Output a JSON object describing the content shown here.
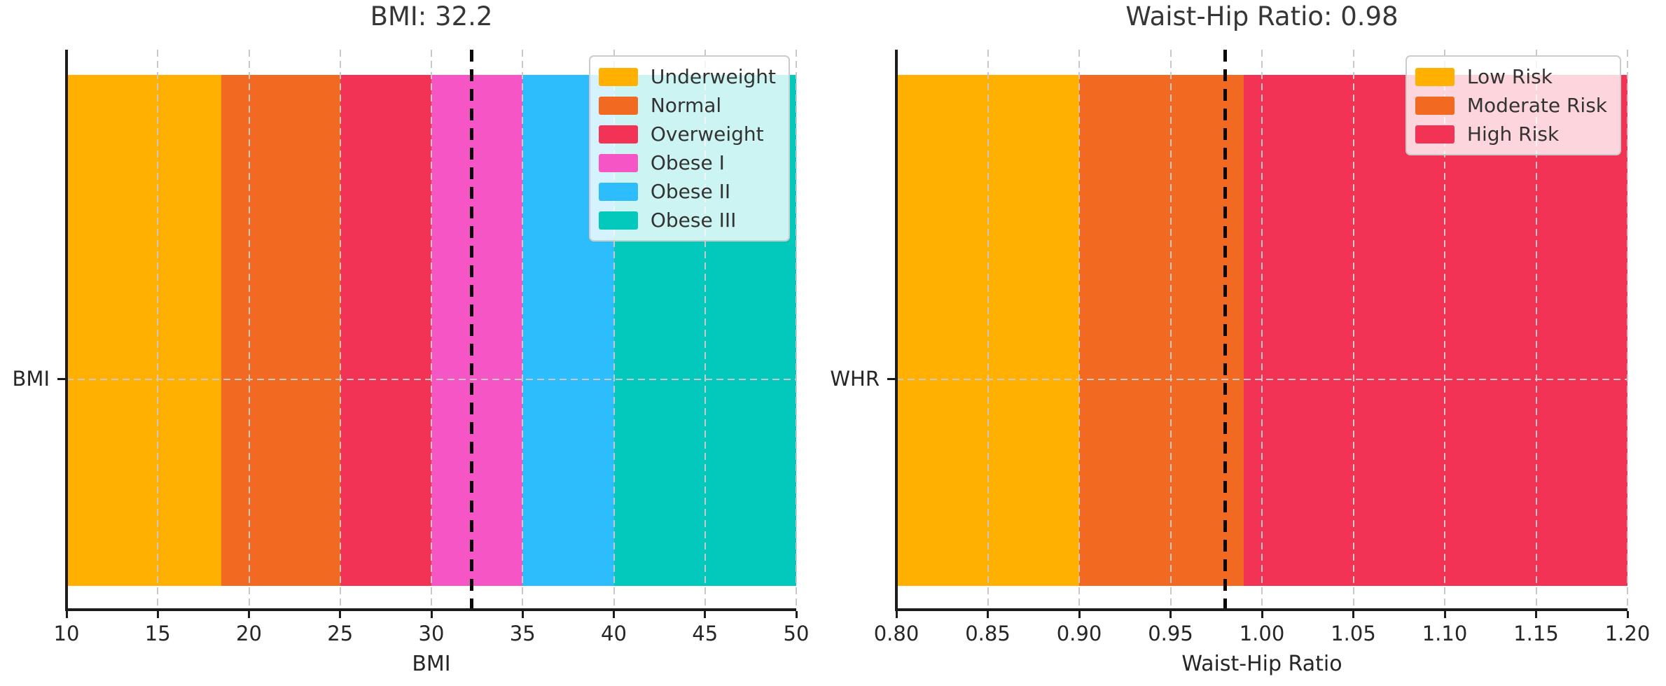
{
  "figure": {
    "background": "#ffffff",
    "text_color": "#2e2e2e",
    "spine_color": "#1c1c1c",
    "grid_color": "#c8c8c8",
    "value_line_color": "#0a0a0a"
  },
  "chart_data": [
    {
      "type": "band-gauge",
      "title": "BMI: 32.2",
      "xlabel": "BMI",
      "ytick_label": "BMI",
      "value": 32.2,
      "xlim": [
        10,
        50
      ],
      "xticks": [
        "10",
        "15",
        "20",
        "25",
        "30",
        "35",
        "40",
        "45",
        "50"
      ],
      "grid": "dashed-gray-over-bands",
      "value_marker": "black-dashed-vertical-line",
      "legend_position": "upper-right",
      "bands": [
        {
          "label": "Underweight",
          "start": 10,
          "end": 18.5,
          "color": "#FFB000"
        },
        {
          "label": "Normal",
          "start": 18.5,
          "end": 25,
          "color": "#F26A22"
        },
        {
          "label": "Overweight",
          "start": 25,
          "end": 30,
          "color": "#F23355"
        },
        {
          "label": "Obese I",
          "start": 30,
          "end": 35,
          "color": "#F655C6"
        },
        {
          "label": "Obese II",
          "start": 35,
          "end": 40,
          "color": "#2DBCFC"
        },
        {
          "label": "Obese III",
          "start": 40,
          "end": 50,
          "color": "#03C9BD"
        }
      ]
    },
    {
      "type": "band-gauge",
      "title": "Waist-Hip Ratio: 0.98",
      "xlabel": "Waist-Hip Ratio",
      "ytick_label": "WHR",
      "value": 0.98,
      "xlim": [
        0.8,
        1.2
      ],
      "xticks": [
        "0.80",
        "0.85",
        "0.90",
        "0.95",
        "1.00",
        "1.05",
        "1.10",
        "1.15",
        "1.20"
      ],
      "grid": "dashed-gray-over-bands",
      "value_marker": "black-dashed-vertical-line",
      "legend_position": "upper-right",
      "bands": [
        {
          "label": "Low Risk",
          "start": 0.8,
          "end": 0.9,
          "color": "#FFB000"
        },
        {
          "label": "Moderate Risk",
          "start": 0.9,
          "end": 0.99,
          "color": "#F26A22"
        },
        {
          "label": "High Risk",
          "start": 0.99,
          "end": 1.2,
          "color": "#F23355"
        }
      ]
    }
  ]
}
